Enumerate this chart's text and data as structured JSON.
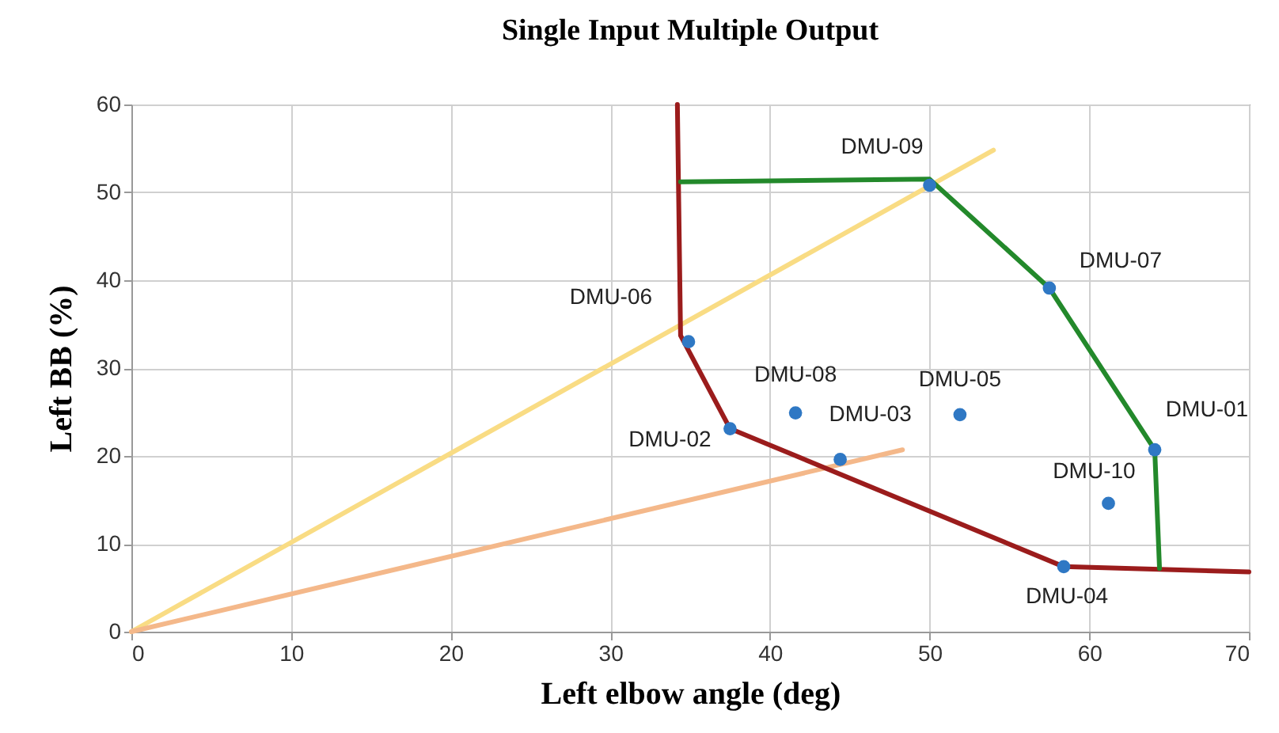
{
  "chart_data": {
    "type": "scatter",
    "title": "Single Input Multiple Output",
    "xlabel": "Left elbow angle (deg)",
    "ylabel": "Left BB (%)",
    "xlim": [
      0,
      70
    ],
    "ylim": [
      0,
      60
    ],
    "xticks": [
      0,
      10,
      20,
      30,
      40,
      50,
      60,
      70
    ],
    "yticks": [
      0,
      10,
      20,
      30,
      40,
      50,
      60
    ],
    "grid": true,
    "series": [
      {
        "type": "line",
        "color": "#f9dc84",
        "marker": "none",
        "line_style": "solid",
        "x": [
          0,
          54.0
        ],
        "values": [
          0,
          54.8
        ]
      },
      {
        "type": "line",
        "color": "#f4b88a",
        "marker": "none",
        "line_style": "solid",
        "x": [
          0,
          48.3
        ],
        "values": [
          0,
          20.7
        ]
      },
      {
        "type": "line",
        "color": "#9b1c1c",
        "marker": "none",
        "line_style": "solid",
        "x": [
          34.2,
          34.4,
          37.5,
          58.4,
          70
        ],
        "values": [
          60,
          33.7,
          23.1,
          7.4,
          6.8
        ]
      },
      {
        "type": "line",
        "color": "#23892b",
        "marker": "none",
        "line_style": "solid",
        "x": [
          34.4,
          50.0,
          57.5,
          64.1,
          64.4
        ],
        "values": [
          51.2,
          51.5,
          39.1,
          20.7,
          7.2
        ]
      },
      {
        "color": "#2f78c4",
        "marker": "circle",
        "x": [
          50.0,
          57.5,
          34.9,
          41.6,
          51.9,
          44.4,
          37.5,
          64.1,
          61.2,
          58.4
        ],
        "values": [
          50.8,
          39.1,
          33.0,
          24.9,
          24.7,
          19.6,
          23.1,
          20.7,
          14.6,
          7.4
        ]
      }
    ],
    "annotations": [
      {
        "text": "DMU-09",
        "x": 50.0,
        "y": 50.8
      },
      {
        "text": "DMU-07",
        "x": 57.5,
        "y": 39.1
      },
      {
        "text": "DMU-06",
        "x": 34.9,
        "y": 33.0
      },
      {
        "text": "DMU-08",
        "x": 41.6,
        "y": 24.9
      },
      {
        "text": "DMU-05",
        "x": 51.9,
        "y": 24.7
      },
      {
        "text": "DMU-03",
        "x": 44.4,
        "y": 19.6
      },
      {
        "text": "DMU-02",
        "x": 37.5,
        "y": 23.1
      },
      {
        "text": "DMU-01",
        "x": 64.1,
        "y": 20.7
      },
      {
        "text": "DMU-10",
        "x": 61.2,
        "y": 14.6
      },
      {
        "text": "DMU-04",
        "x": 58.4,
        "y": 7.4
      }
    ]
  }
}
